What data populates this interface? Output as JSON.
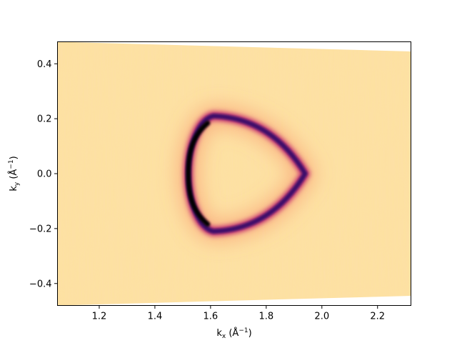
{
  "chart_data": {
    "type": "heatmap",
    "title": "",
    "xlabel": {
      "base": "k",
      "sub": "x",
      "unit_open": " (",
      "unit": "Å",
      "sup": "−1",
      "unit_close": ")"
    },
    "ylabel": {
      "base": "k",
      "sub": "y",
      "unit_open": " (",
      "unit": "Å",
      "sup": "−1",
      "unit_close": ")"
    },
    "xlim": [
      1.05,
      2.32
    ],
    "ylim": [
      -0.48,
      0.48
    ],
    "x_ticks": [
      1.2,
      1.4,
      1.6,
      1.8,
      2.0,
      2.2
    ],
    "x_tick_labels": [
      "1.2",
      "1.4",
      "1.6",
      "1.8",
      "2.0",
      "2.2"
    ],
    "y_ticks": [
      0.4,
      0.2,
      0.0,
      -0.2,
      -0.4
    ],
    "y_tick_labels": [
      "0.4",
      "0.2",
      "0.0",
      "−0.2",
      "−0.4"
    ],
    "colormap": "magma",
    "background_color": "#fde1a1",
    "grid": false,
    "data_region": {
      "left_edge_ky": [
        -0.48,
        0.48
      ],
      "right_edge_ky": [
        -0.445,
        0.445
      ]
    },
    "feature": {
      "shape": "rounded triangle (Fermi surface contour)",
      "vertices": [
        {
          "kx": 1.61,
          "ky": 0.21
        },
        {
          "kx": 1.94,
          "ky": 0.0
        },
        {
          "kx": 1.61,
          "ky": -0.21
        }
      ],
      "left_edge_kx": 1.52,
      "max_intensity_location": {
        "kx": 1.52,
        "ky": 0.0
      }
    }
  }
}
